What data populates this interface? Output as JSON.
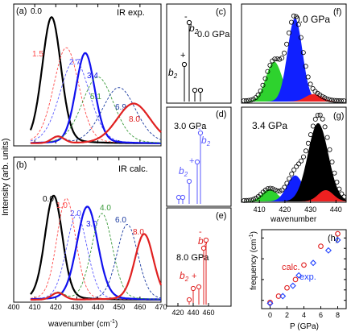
{
  "figure": {
    "ylabel": "Intensity (arb. units)",
    "xlabel": "wavenumber (cm",
    "xlabel_sup": "-1",
    "xlabel_end": ")"
  },
  "panel_a": {
    "label": "(a)",
    "title": "IR exp.",
    "xticks": [
      "400",
      "410",
      "420",
      "430",
      "440",
      "450",
      "460",
      "470"
    ]
  },
  "panel_b": {
    "label": "(b)",
    "title": "IR calc.",
    "xticks": [
      "400",
      "410",
      "420",
      "430",
      "440",
      "450",
      "460",
      "470"
    ]
  },
  "panel_c": {
    "label": "(c)",
    "pressure": "0.0 GPa",
    "peak_labels": [
      "b2",
      "b2"
    ],
    "signs": [
      "+",
      "-"
    ]
  },
  "panel_d": {
    "label": "(d)",
    "pressure": "3.0 GPa",
    "peak_labels": [
      "b2",
      "b2"
    ],
    "signs": [
      "+",
      "-"
    ]
  },
  "panel_e": {
    "label": "(e)",
    "pressure": "8.0 GPa",
    "peak_labels": [
      "b2",
      "b2"
    ],
    "signs": [
      "+",
      "-"
    ],
    "xticks": [
      "420",
      "440",
      "460"
    ]
  },
  "panel_f": {
    "label": "(f)",
    "pressure": "0.0 GPa"
  },
  "panel_g": {
    "label": "(g)",
    "pressure": "3.4 GPa",
    "xticks": [
      "410",
      "420",
      "430",
      "440"
    ],
    "xlabel": "wavenumber"
  },
  "panel_h": {
    "label": "(h)",
    "ylabel": "frequency (cm",
    "ylabel_sup": "-1",
    "ylabel_end": ")",
    "xlabel": "P (GPa)",
    "xticks": [
      "0",
      "2",
      "4",
      "6",
      "8"
    ],
    "yticks": [
      "420",
      "425",
      "430",
      "435",
      "440",
      "445",
      "450"
    ],
    "legend": [
      "calc.",
      "exp."
    ]
  },
  "colors": {
    "p0": "#000000",
    "p1": "#ff4a4a",
    "p2": "#5a5aff",
    "p3": "#1010ee",
    "p4": "#3a9a3a",
    "p5": "#1a3aa0",
    "p6": "#e02020",
    "green": "#2ed22e",
    "blue": "#1020ff",
    "red": "#ee2020",
    "calc": "#e02020",
    "exp": "#2040ff"
  },
  "chart_data": [
    {
      "type": "line",
      "title": "IR exp.",
      "xlim": [
        400,
        470
      ],
      "series": [
        {
          "name": "0.0",
          "center": 418,
          "width": 4.5,
          "peak": 0.95,
          "style": "solid"
        },
        {
          "name": "1.5",
          "center": 425,
          "width": 6,
          "peak": 0.72,
          "style": "dashed"
        },
        {
          "name": "2.7",
          "center": 429,
          "width": 7,
          "peak": 0.63,
          "style": "dashed"
        },
        {
          "name": "3.4",
          "center": 434,
          "width": 4.5,
          "peak": 0.68,
          "style": "solid"
        },
        {
          "name": "5.1",
          "center": 440,
          "width": 7.5,
          "peak": 0.5,
          "style": "dashed"
        },
        {
          "name": "6.9",
          "center": 450,
          "width": 8,
          "peak": 0.42,
          "style": "dashed"
        },
        {
          "name": "8.0",
          "center": 457,
          "width": 8,
          "peak": 0.3,
          "style": "solid"
        }
      ]
    },
    {
      "type": "line",
      "title": "IR calc.",
      "xlim": [
        400,
        470
      ],
      "series": [
        {
          "name": "0.0",
          "center": 419,
          "width": 4.2,
          "peak": 0.76,
          "style": "solid"
        },
        {
          "name": "1.0",
          "center": 425,
          "width": 4.5,
          "peak": 0.74,
          "style": "dashed"
        },
        {
          "name": "2.0",
          "center": 430,
          "width": 5,
          "peak": 0.62,
          "style": "dashed"
        },
        {
          "name": "3.0",
          "center": 435,
          "width": 5,
          "peak": 0.68,
          "style": "solid"
        },
        {
          "name": "4.0",
          "center": 442,
          "width": 5,
          "peak": 0.63,
          "style": "dashed"
        },
        {
          "name": "6.0",
          "center": 454,
          "width": 5,
          "peak": 0.55,
          "style": "dashed"
        },
        {
          "name": "8.0",
          "center": 462,
          "width": 4.5,
          "peak": 0.48,
          "style": "solid"
        }
      ]
    },
    {
      "type": "scatter",
      "title": "",
      "xlabel": "P (GPa)",
      "ylabel": "frequency (cm-1)",
      "xlim": [
        -1,
        9
      ],
      "ylim": [
        416,
        454
      ],
      "series": [
        {
          "name": "calc.",
          "marker": "circle",
          "x": [
            0,
            1,
            2,
            3,
            4,
            6,
            8
          ],
          "y": [
            419,
            422,
            426,
            430,
            437,
            446,
            452
          ]
        },
        {
          "name": "exp.",
          "marker": "diamond",
          "x": [
            0,
            1.5,
            2.7,
            3.4,
            5.1,
            6.9,
            8.0
          ],
          "y": [
            418.5,
            422,
            427,
            432,
            438,
            444,
            449
          ]
        }
      ]
    }
  ]
}
